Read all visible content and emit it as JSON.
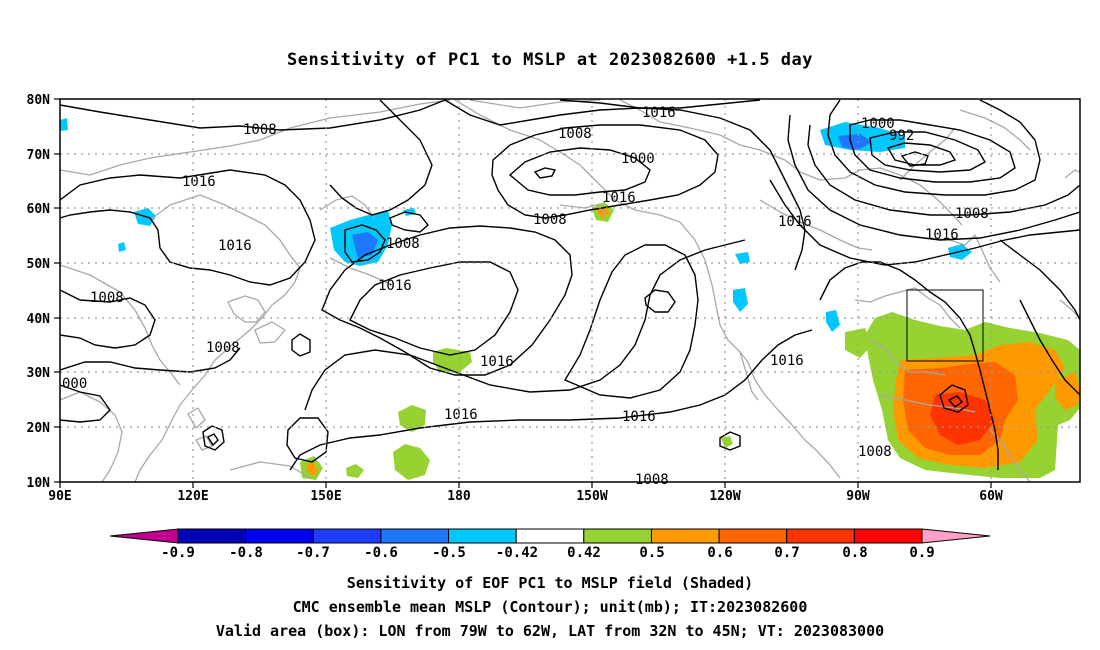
{
  "title": "Sensitivity of PC1 to MSLP at 2023082600 +1.5 day",
  "lat_labels": [
    "80N",
    "70N",
    "60N",
    "50N",
    "40N",
    "30N",
    "20N",
    "10N"
  ],
  "lon_labels": [
    "90E",
    "120E",
    "150E",
    "180",
    "150W",
    "120W",
    "90W",
    "60W"
  ],
  "contour_labels": [
    "1008",
    "1016",
    "1016",
    "1008",
    "1008",
    "000",
    "1016",
    "1008",
    "1016",
    "1016",
    "1016",
    "1008",
    "1000",
    "1016",
    "1008",
    "1016",
    "1016",
    "1000",
    "992",
    "1008",
    "1016",
    "1016",
    "1008",
    "1008"
  ],
  "colorbar": {
    "tick_labels": [
      "-0.9",
      "-0.8",
      "-0.7",
      "-0.6",
      "-0.5",
      "-0.42",
      "0.42",
      "0.5",
      "0.6",
      "0.7",
      "0.8",
      "0.9"
    ],
    "colors": [
      "#c0008f",
      "#0000b4",
      "#0000f0",
      "#1e3cff",
      "#1e78ff",
      "#00c8ff",
      "#ffffff",
      "#96d232",
      "#ff9900",
      "#ff6600",
      "#ff3300",
      "#ff0000",
      "#ffa0c8"
    ]
  },
  "box": {
    "lon_from": "79W",
    "lon_to": "62W",
    "lat_from": "32N",
    "lat_to": "45N"
  },
  "footer": {
    "line1": "Sensitivity of EOF PC1 to MSLP field (Shaded)",
    "line2": "CMC ensemble mean MSLP (Contour); unit(mb); IT:2023082600",
    "line3": "Valid area (box): LON from 79W to 62W, LAT from 32N to 45N; VT: 2023083000"
  }
}
